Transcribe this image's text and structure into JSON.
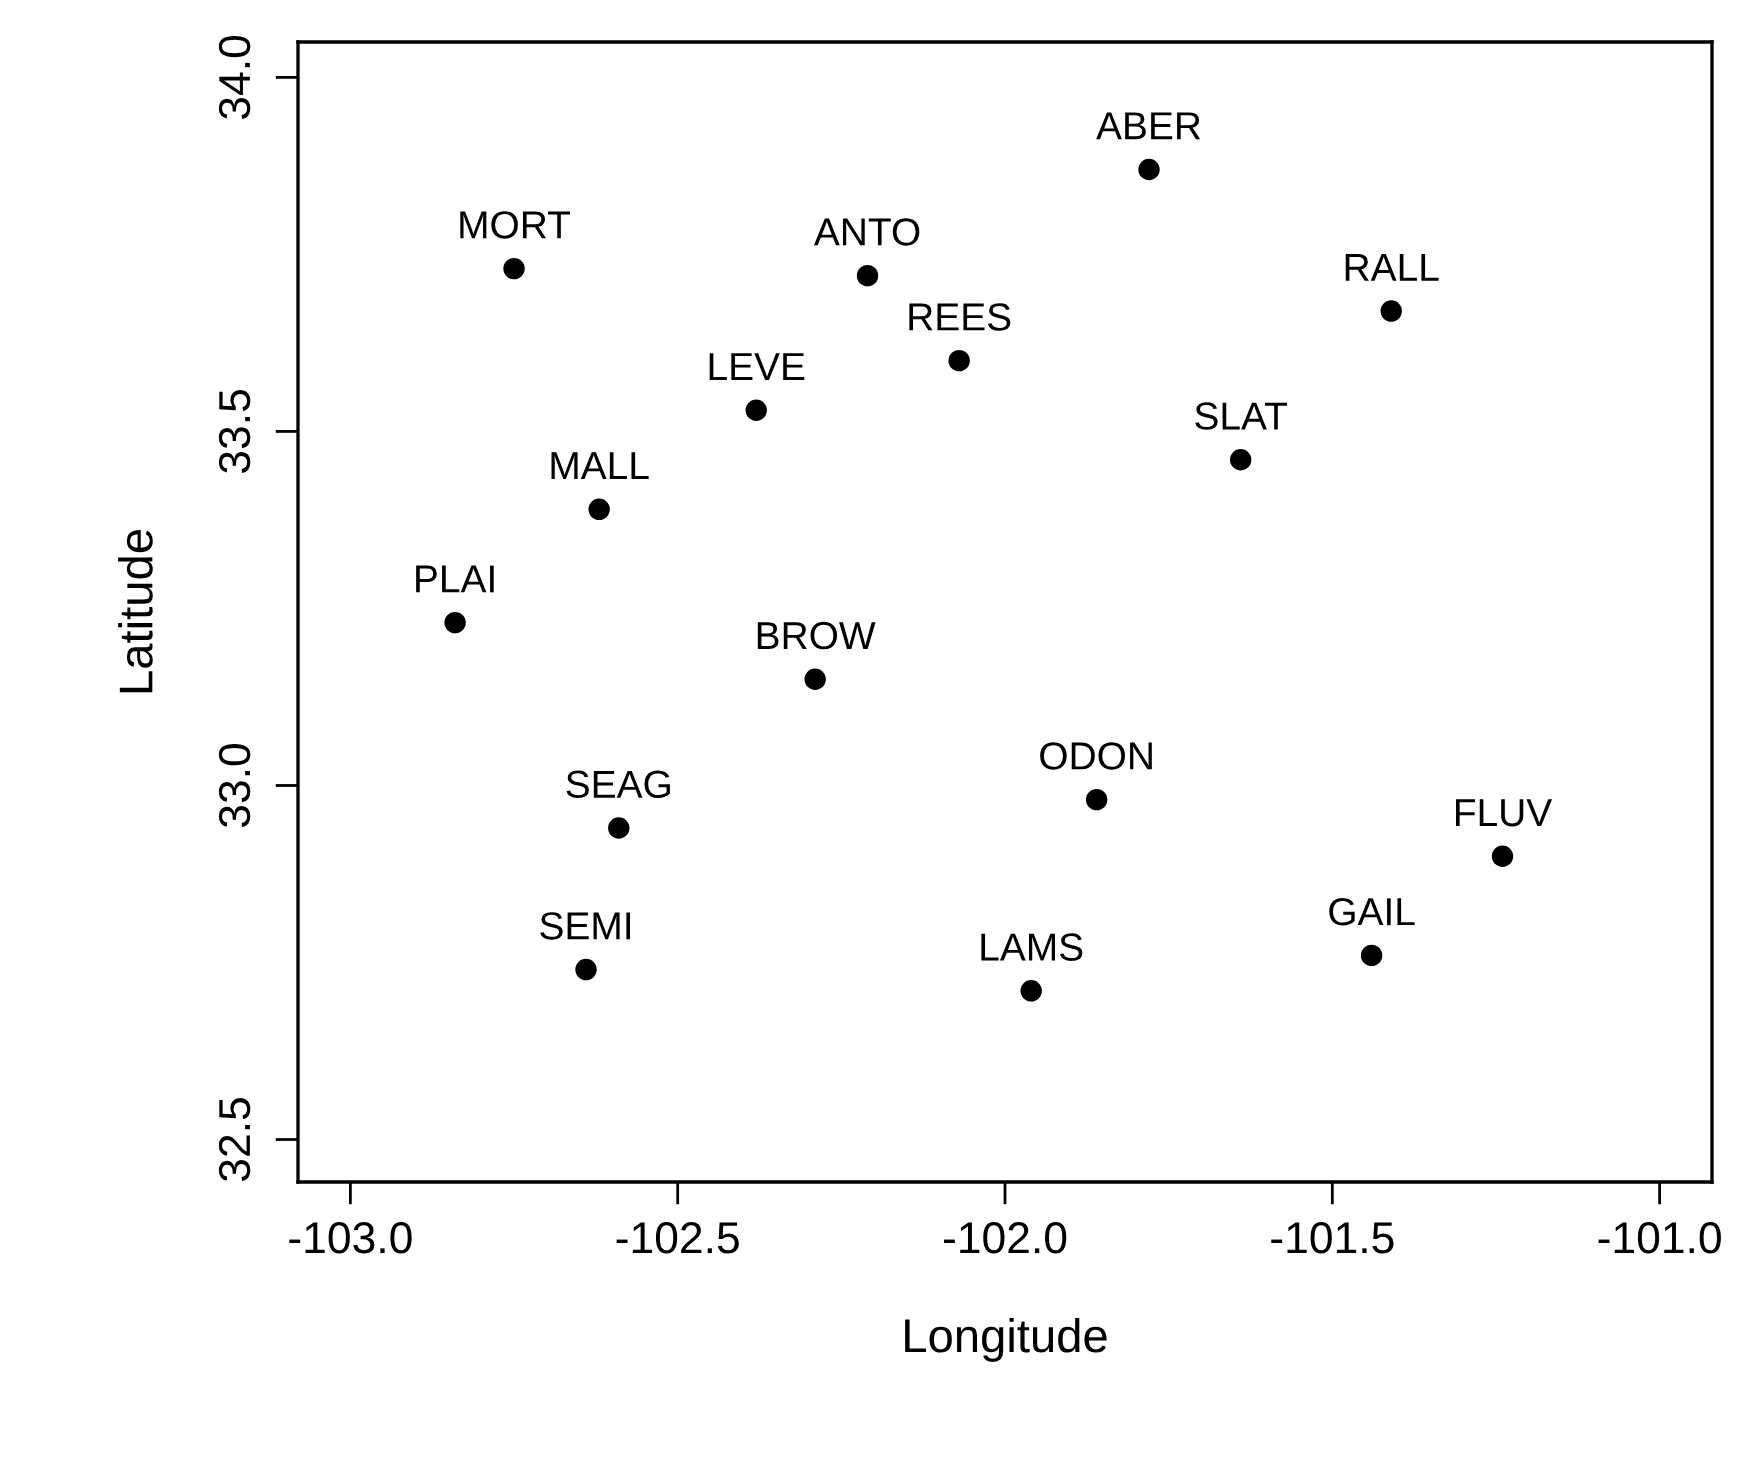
{
  "chart_data": {
    "type": "scatter",
    "xlabel": "Longitude",
    "ylabel": "Latitude",
    "x": [
      -101.78,
      -102.75,
      -102.21,
      -101.41,
      -102.07,
      -102.38,
      -101.64,
      -102.62,
      -102.84,
      -102.29,
      -101.86,
      -102.59,
      -101.24,
      -101.44,
      -102.64,
      -101.96
    ],
    "values": [
      33.87,
      33.73,
      33.72,
      33.67,
      33.6,
      33.53,
      33.46,
      33.39,
      33.23,
      33.15,
      32.98,
      32.94,
      32.9,
      32.76,
      32.74,
      32.71
    ],
    "color": "#000000",
    "marker": "circle",
    "grid": false,
    "xlim": [
      -103.08,
      -100.92
    ],
    "ylim": [
      32.44,
      34.05
    ],
    "xticks": [
      {
        "value": -103,
        "label": "-103.0"
      },
      {
        "value": -102.5,
        "label": "-102.5"
      },
      {
        "value": -102,
        "label": "-102.0"
      },
      {
        "value": -101.5,
        "label": "-101.5"
      },
      {
        "value": -101,
        "label": "-101.0"
      }
    ],
    "yticks": [
      {
        "value": 32.5,
        "label": "32.5"
      },
      {
        "value": 33,
        "label": "33.0"
      },
      {
        "value": 33.5,
        "label": "33.5"
      },
      {
        "value": 34,
        "label": "34.0"
      }
    ],
    "annotations": [
      {
        "text": "ABER",
        "x": -101.78,
        "y": 33.87
      },
      {
        "text": "MORT",
        "x": -102.75,
        "y": 33.73
      },
      {
        "text": "ANTO",
        "x": -102.21,
        "y": 33.72
      },
      {
        "text": "RALL",
        "x": -101.41,
        "y": 33.67
      },
      {
        "text": "REES",
        "x": -102.07,
        "y": 33.6
      },
      {
        "text": "LEVE",
        "x": -102.38,
        "y": 33.53
      },
      {
        "text": "SLAT",
        "x": -101.64,
        "y": 33.46
      },
      {
        "text": "MALL",
        "x": -102.62,
        "y": 33.39
      },
      {
        "text": "PLAI",
        "x": -102.84,
        "y": 33.23
      },
      {
        "text": "BROW",
        "x": -102.29,
        "y": 33.15
      },
      {
        "text": "ODON",
        "x": -101.86,
        "y": 32.98
      },
      {
        "text": "SEAG",
        "x": -102.59,
        "y": 32.94
      },
      {
        "text": "FLUV",
        "x": -101.24,
        "y": 32.9
      },
      {
        "text": "GAIL",
        "x": -101.44,
        "y": 32.76
      },
      {
        "text": "SEMI",
        "x": -102.64,
        "y": 32.74
      },
      {
        "text": "LAMS",
        "x": -101.96,
        "y": 32.71
      }
    ]
  }
}
